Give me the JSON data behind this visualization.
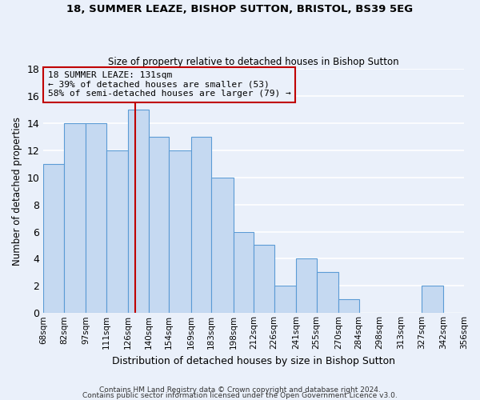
{
  "title1": "18, SUMMER LEAZE, BISHOP SUTTON, BRISTOL, BS39 5EG",
  "title2": "Size of property relative to detached houses in Bishop Sutton",
  "xlabel": "Distribution of detached houses by size in Bishop Sutton",
  "ylabel": "Number of detached properties",
  "bin_edges": [
    68,
    82,
    97,
    111,
    126,
    140,
    154,
    169,
    183,
    198,
    212,
    226,
    241,
    255,
    270,
    284,
    298,
    313,
    327,
    342,
    356
  ],
  "bin_counts": [
    11,
    14,
    14,
    12,
    15,
    13,
    12,
    13,
    10,
    6,
    5,
    2,
    4,
    3,
    1,
    0,
    0,
    0,
    2,
    0
  ],
  "bar_color": "#c5d9f1",
  "bar_edge_color": "#5b9bd5",
  "property_size": 131,
  "vline_color": "#c00000",
  "annotation_line1": "18 SUMMER LEAZE: 131sqm",
  "annotation_line2": "← 39% of detached houses are smaller (53)",
  "annotation_line3": "58% of semi-detached houses are larger (79) →",
  "annotation_box_edge_color": "#c00000",
  "ylim": [
    0,
    18
  ],
  "yticks": [
    0,
    2,
    4,
    6,
    8,
    10,
    12,
    14,
    16,
    18
  ],
  "footer1": "Contains HM Land Registry data © Crown copyright and database right 2024.",
  "footer2": "Contains public sector information licensed under the Open Government Licence v3.0.",
  "bg_color": "#eaf0fa",
  "grid_color": "#ffffff"
}
